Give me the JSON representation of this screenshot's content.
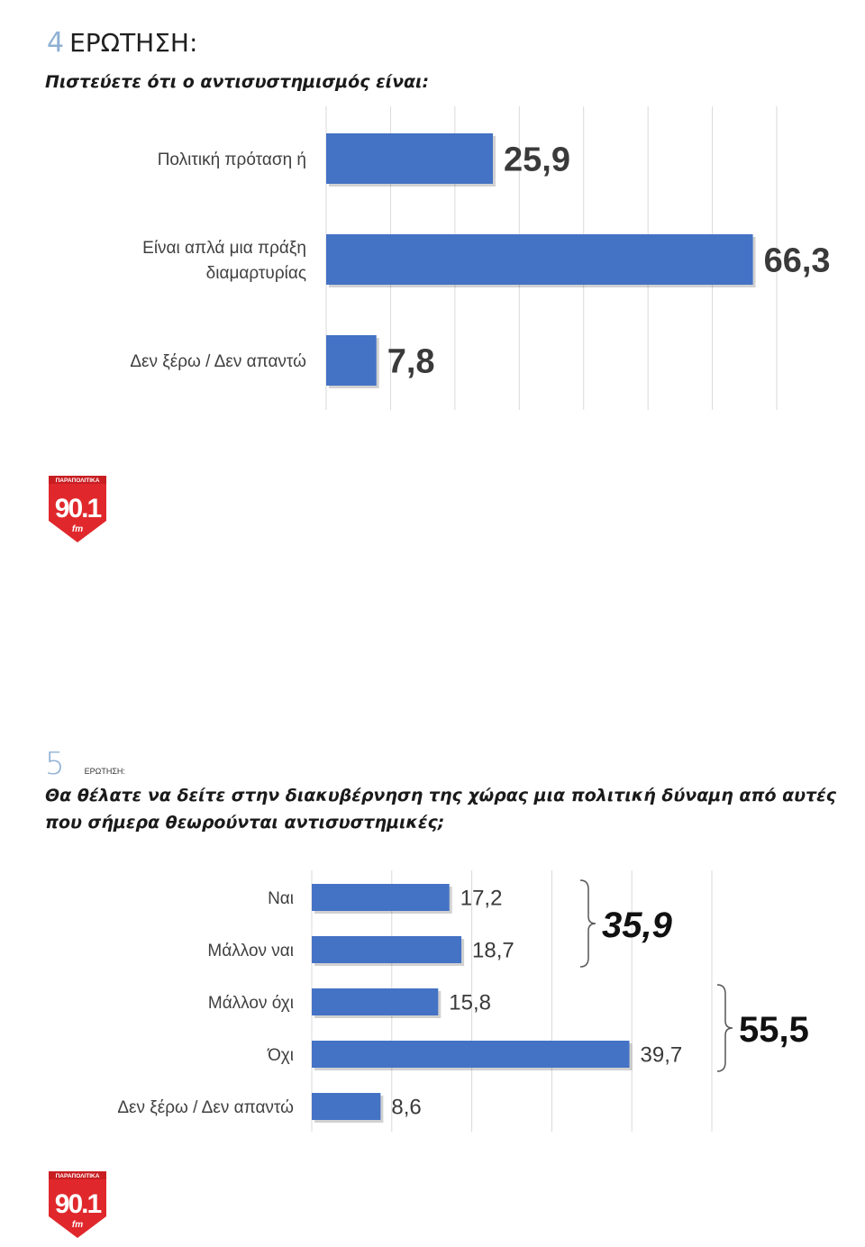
{
  "q4": {
    "number": "4",
    "word": "ΕΡΩΤΗΣΗ:",
    "question": "Πιστεύετε ότι ο αντισυστημισμός είναι:"
  },
  "q5": {
    "number": "5",
    "word": "ΕΡΩΤΗΣΗ:",
    "question_lines": [
      "Θα θέλατε να δείτε στην διακυβέρνηση της χώρας μια πολιτική δύναμη από αυτές",
      "που σήμερα θεωρούνται αντισυστημικές;"
    ]
  },
  "logo": {
    "top_text": "ΠΑΡΑΠΟΛΙΤΙΚΑ",
    "main_text": "90.1",
    "sub_text": "fm",
    "color": "#e0282c"
  },
  "colors": {
    "bar": "#4472c4",
    "grid": "#d9d9d9",
    "label": "#404040"
  },
  "chart_data": [
    {
      "type": "bar",
      "orientation": "horizontal",
      "categories": [
        [
          "Πολιτική πρόταση ή"
        ],
        [
          "Είναι απλά μια πράξη",
          "διαμαρτυρίας"
        ],
        [
          "Δεν ξέρω / Δεν απαντώ"
        ]
      ],
      "values": [
        25.9,
        66.3,
        7.8
      ],
      "data_labels": [
        "25,9",
        "66,3",
        "7,8"
      ],
      "xlim": [
        0,
        70
      ],
      "grid": true
    },
    {
      "type": "bar",
      "orientation": "horizontal",
      "categories": [
        [
          "Ναι"
        ],
        [
          "Μάλλον ναι"
        ],
        [
          "Μάλλον όχι"
        ],
        [
          "Όχι"
        ],
        [
          "Δεν ξέρω / Δεν απαντώ"
        ]
      ],
      "values": [
        17.2,
        18.7,
        15.8,
        39.7,
        8.6
      ],
      "data_labels": [
        "17,2",
        "18,7",
        "15,8",
        "39,7",
        "8,6"
      ],
      "xlim": [
        0,
        50
      ],
      "grid": true,
      "groups": [
        {
          "label": "35,9",
          "value": 35.9,
          "from": 0,
          "to": 1
        },
        {
          "label": "55,5",
          "value": 55.5,
          "from": 2,
          "to": 3
        }
      ]
    }
  ]
}
